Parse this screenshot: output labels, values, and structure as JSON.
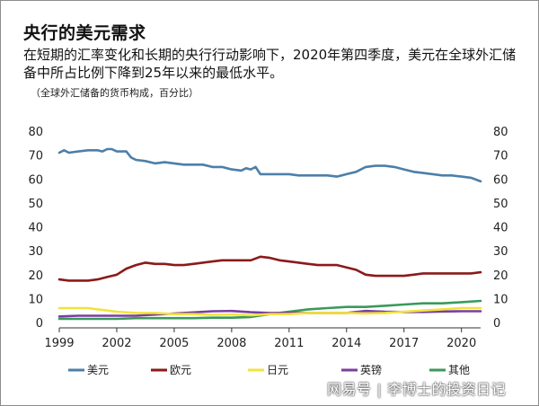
{
  "header": {
    "title": "央行的美元需求",
    "subtitle": "在短期的汇率变化和长期的央行行动影响下，2020年第四季度，美元在全球外汇储备中所占比例下降到25年以来的最低水平。",
    "note": "（全球外汇储备的货币构成，百分比）"
  },
  "watermark": {
    "brand": "网易号",
    "separator": "|",
    "author": "李博士的投资日记"
  },
  "chart_data": {
    "type": "line",
    "ylim": [
      0,
      80
    ],
    "xlim": [
      1999,
      2021
    ],
    "yticks": [
      0,
      10,
      20,
      30,
      40,
      50,
      60,
      70,
      80
    ],
    "xticks": [
      1999,
      2002,
      2005,
      2008,
      2011,
      2014,
      2017,
      2020
    ],
    "grid": false,
    "legend_position": "bottom",
    "series": [
      {
        "name": "美元",
        "color": "#4d7fa8",
        "points": [
          [
            1999.0,
            71
          ],
          [
            1999.25,
            72
          ],
          [
            1999.5,
            71
          ],
          [
            2000.0,
            71.5
          ],
          [
            2000.5,
            72
          ],
          [
            2001.0,
            72
          ],
          [
            2001.25,
            71.5
          ],
          [
            2001.5,
            72.5
          ],
          [
            2001.75,
            72.5
          ],
          [
            2002.0,
            71.5
          ],
          [
            2002.5,
            71.5
          ],
          [
            2002.75,
            69
          ],
          [
            2003.0,
            68
          ],
          [
            2003.5,
            67.5
          ],
          [
            2004.0,
            66.5
          ],
          [
            2004.5,
            67
          ],
          [
            2005.0,
            66.5
          ],
          [
            2005.5,
            66
          ],
          [
            2006.0,
            66
          ],
          [
            2006.5,
            66
          ],
          [
            2007.0,
            65
          ],
          [
            2007.5,
            65
          ],
          [
            2008.0,
            64
          ],
          [
            2008.5,
            63.5
          ],
          [
            2008.75,
            64.5
          ],
          [
            2009.0,
            64
          ],
          [
            2009.25,
            65
          ],
          [
            2009.5,
            62
          ],
          [
            2010.0,
            62
          ],
          [
            2010.5,
            62
          ],
          [
            2011.0,
            62
          ],
          [
            2011.5,
            61.5
          ],
          [
            2012.0,
            61.5
          ],
          [
            2012.5,
            61.5
          ],
          [
            2013.0,
            61.5
          ],
          [
            2013.5,
            61
          ],
          [
            2014.0,
            62
          ],
          [
            2014.5,
            63
          ],
          [
            2015.0,
            65
          ],
          [
            2015.5,
            65.5
          ],
          [
            2016.0,
            65.5
          ],
          [
            2016.5,
            65
          ],
          [
            2017.0,
            64
          ],
          [
            2017.5,
            63
          ],
          [
            2018.0,
            62.5
          ],
          [
            2018.5,
            62
          ],
          [
            2019.0,
            61.5
          ],
          [
            2019.5,
            61.5
          ],
          [
            2020.0,
            61
          ],
          [
            2020.5,
            60.5
          ],
          [
            2021.0,
            59
          ]
        ]
      },
      {
        "name": "欧元",
        "color": "#8b1a1a",
        "points": [
          [
            1999.0,
            18
          ],
          [
            1999.5,
            17.5
          ],
          [
            2000.0,
            17.5
          ],
          [
            2000.5,
            17.5
          ],
          [
            2001.0,
            18
          ],
          [
            2001.5,
            19
          ],
          [
            2002.0,
            20
          ],
          [
            2002.5,
            22.5
          ],
          [
            2003.0,
            24
          ],
          [
            2003.5,
            25
          ],
          [
            2004.0,
            24.5
          ],
          [
            2004.5,
            24.5
          ],
          [
            2005.0,
            24
          ],
          [
            2005.5,
            24
          ],
          [
            2006.0,
            24.5
          ],
          [
            2006.5,
            25
          ],
          [
            2007.0,
            25.5
          ],
          [
            2007.5,
            26
          ],
          [
            2008.0,
            26
          ],
          [
            2008.5,
            26
          ],
          [
            2009.0,
            26
          ],
          [
            2009.5,
            27.5
          ],
          [
            2010.0,
            27
          ],
          [
            2010.5,
            26
          ],
          [
            2011.0,
            25.5
          ],
          [
            2011.5,
            25
          ],
          [
            2012.0,
            24.5
          ],
          [
            2012.5,
            24
          ],
          [
            2013.0,
            24
          ],
          [
            2013.5,
            24
          ],
          [
            2014.0,
            23
          ],
          [
            2014.5,
            22
          ],
          [
            2015.0,
            20
          ],
          [
            2015.5,
            19.5
          ],
          [
            2016.0,
            19.5
          ],
          [
            2016.5,
            19.5
          ],
          [
            2017.0,
            19.5
          ],
          [
            2017.5,
            20
          ],
          [
            2018.0,
            20.5
          ],
          [
            2018.5,
            20.5
          ],
          [
            2019.0,
            20.5
          ],
          [
            2019.5,
            20.5
          ],
          [
            2020.0,
            20.5
          ],
          [
            2020.5,
            20.5
          ],
          [
            2021.0,
            21
          ]
        ]
      },
      {
        "name": "日元",
        "color": "#f2e33c",
        "points": [
          [
            1999.0,
            6
          ],
          [
            1999.5,
            6
          ],
          [
            2000.0,
            6
          ],
          [
            2000.5,
            6
          ],
          [
            2001.0,
            5.5
          ],
          [
            2001.5,
            5
          ],
          [
            2002.0,
            4.5
          ],
          [
            2003.0,
            4
          ],
          [
            2004.0,
            4
          ],
          [
            2005.0,
            3.5
          ],
          [
            2006.0,
            3.5
          ],
          [
            2007.0,
            3.2
          ],
          [
            2008.0,
            3.3
          ],
          [
            2009.0,
            3
          ],
          [
            2010.0,
            3.5
          ],
          [
            2011.0,
            3.5
          ],
          [
            2012.0,
            4
          ],
          [
            2013.0,
            4
          ],
          [
            2014.0,
            4
          ],
          [
            2015.0,
            3.8
          ],
          [
            2016.0,
            4
          ],
          [
            2017.0,
            4.5
          ],
          [
            2018.0,
            5
          ],
          [
            2019.0,
            5.5
          ],
          [
            2020.0,
            6
          ],
          [
            2021.0,
            6
          ]
        ]
      },
      {
        "name": "英镑",
        "color": "#7b3f9e",
        "points": [
          [
            1999.0,
            2.5
          ],
          [
            2000.0,
            2.8
          ],
          [
            2001.0,
            2.8
          ],
          [
            2002.0,
            2.8
          ],
          [
            2003.0,
            2.8
          ],
          [
            2004.0,
            3.3
          ],
          [
            2005.0,
            3.7
          ],
          [
            2006.0,
            4.2
          ],
          [
            2007.0,
            4.7
          ],
          [
            2008.0,
            4.8
          ],
          [
            2009.0,
            4.3
          ],
          [
            2010.0,
            4
          ],
          [
            2011.0,
            4
          ],
          [
            2012.0,
            4
          ],
          [
            2013.0,
            4
          ],
          [
            2014.0,
            4
          ],
          [
            2015.0,
            4.8
          ],
          [
            2016.0,
            4.5
          ],
          [
            2017.0,
            4.4
          ],
          [
            2018.0,
            4.4
          ],
          [
            2019.0,
            4.6
          ],
          [
            2020.0,
            4.7
          ],
          [
            2021.0,
            4.7
          ]
        ]
      },
      {
        "name": "其他",
        "color": "#3a9a5b",
        "points": [
          [
            1999.0,
            1.5
          ],
          [
            2000.0,
            1.5
          ],
          [
            2001.0,
            1.5
          ],
          [
            2002.0,
            1.5
          ],
          [
            2003.0,
            1.8
          ],
          [
            2004.0,
            1.8
          ],
          [
            2005.0,
            1.8
          ],
          [
            2006.0,
            1.8
          ],
          [
            2007.0,
            2
          ],
          [
            2008.0,
            2
          ],
          [
            2009.0,
            2.3
          ],
          [
            2010.0,
            3.5
          ],
          [
            2011.0,
            4.5
          ],
          [
            2012.0,
            5.5
          ],
          [
            2013.0,
            6
          ],
          [
            2014.0,
            6.5
          ],
          [
            2015.0,
            6.5
          ],
          [
            2016.0,
            7
          ],
          [
            2017.0,
            7.5
          ],
          [
            2018.0,
            8
          ],
          [
            2019.0,
            8
          ],
          [
            2020.0,
            8.5
          ],
          [
            2021.0,
            9
          ]
        ]
      }
    ]
  }
}
